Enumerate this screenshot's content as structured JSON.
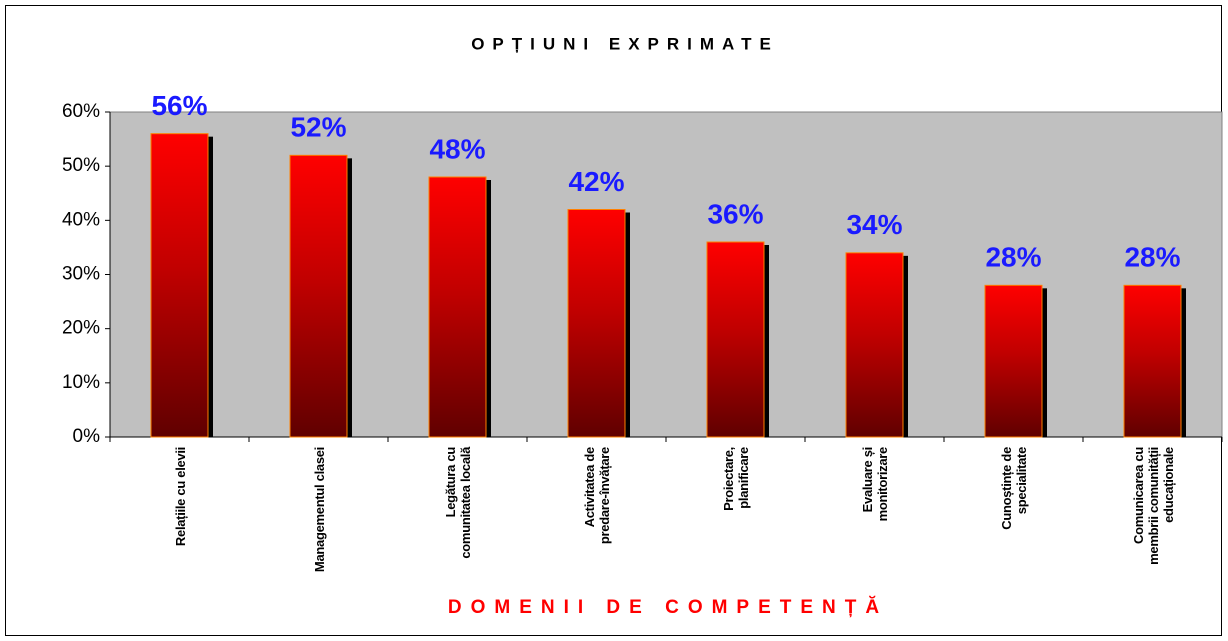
{
  "chart_data": {
    "type": "bar",
    "title": "OPȚIUNI EXPRIMATE",
    "x_label": "DOMENII DE COMPETENȚĂ",
    "categories": [
      "Relațiile cu elevii",
      "Managementul clasei",
      "Legătura cu comunitatea locală",
      "Activitatea de predare-învățare",
      "Proiectare, planificare",
      "Evaluare și monitorizare",
      "Cunoștințe de specialitate",
      "Comunicarea cu membrii comunității educaționale"
    ],
    "values": [
      56,
      52,
      48,
      42,
      36,
      34,
      28,
      28
    ],
    "value_labels": [
      "56%",
      "52%",
      "48%",
      "42%",
      "36%",
      "34%",
      "28%",
      "28%"
    ],
    "color": "#ff0000",
    "ylim": [
      0,
      60
    ],
    "yticks": [
      {
        "value": 0,
        "label": "0%"
      },
      {
        "value": 10,
        "label": "10%"
      },
      {
        "value": 20,
        "label": "20%"
      },
      {
        "value": 30,
        "label": "30%"
      },
      {
        "value": 40,
        "label": "40%"
      },
      {
        "value": 50,
        "label": "50%"
      },
      {
        "value": 60,
        "label": "60%"
      }
    ],
    "grid": false
  }
}
